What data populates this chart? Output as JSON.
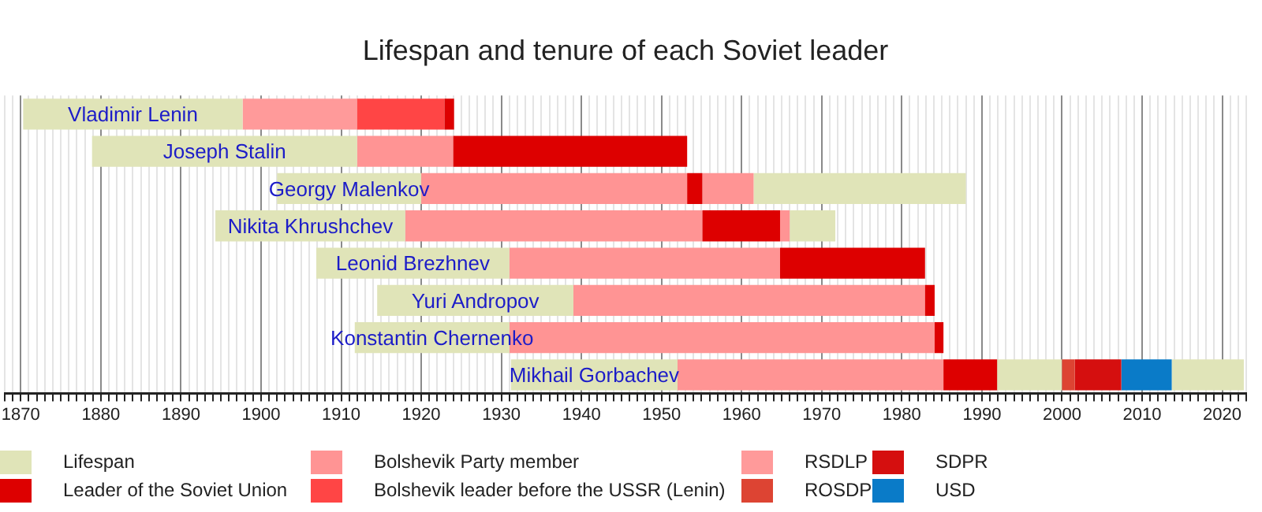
{
  "chart_data": {
    "type": "bar",
    "orientation": "horizontal",
    "title": "Lifespan and tenure of each Soviet leader",
    "categories": [
      "Vladimir Lenin",
      "Joseph Stalin",
      "Georgy Malenkov",
      "Nikita Khrushchev",
      "Leonid Brezhnev",
      "Yuri Andropov",
      "Konstantin Chernenko",
      "Mikhail Gorbachev"
    ],
    "series": [
      {
        "name": "Lifespan",
        "color": "#e0e4b8",
        "base": [
          1870.3,
          1878.9,
          1902,
          1894.3,
          1906.9,
          1914.5,
          1911.7,
          1931.2
        ],
        "values": [
          27.4,
          33.1,
          18,
          23.7,
          24.1,
          24.5,
          19.3,
          20.8
        ]
      },
      {
        "name": "Leader of the Soviet Union",
        "color": "#dd0000",
        "base": [
          1922.9,
          1924,
          1953.2,
          1955.1,
          1964.8,
          1982.9,
          1984.1,
          1985.2
        ],
        "values": [
          1.2,
          29.2,
          1.9,
          9.7,
          18.1,
          1.2,
          1.1,
          6.7
        ]
      },
      {
        "name": "Bolshevik Party member",
        "color": "#ff9494",
        "base": [
          null,
          1912,
          1920,
          1918,
          1931,
          1939,
          1931,
          1952
        ],
        "values": [
          null,
          12,
          33.2,
          37.1,
          33.8,
          43.9,
          53.1,
          33.2
        ]
      },
      {
        "name": "Bolshevik leader before the USSR (Lenin)",
        "color": "#ff4545",
        "base": [
          1912,
          null,
          null,
          null,
          null,
          null,
          null,
          null
        ],
        "values": [
          10.9,
          null,
          null,
          null,
          null,
          null,
          null,
          null
        ]
      },
      {
        "name": "RSDLP",
        "color": "#ff9a9a",
        "base": [
          1897.7,
          null,
          null,
          null,
          null,
          null,
          null,
          null
        ],
        "values": [
          14.3,
          null,
          null,
          null,
          null,
          null,
          null,
          null
        ]
      },
      {
        "name": "ROSDP",
        "color": "#dd4433",
        "base": [
          null,
          null,
          null,
          null,
          null,
          null,
          null,
          2000
        ],
        "values": [
          null,
          null,
          null,
          null,
          null,
          null,
          null,
          1.6
        ]
      },
      {
        "name": "SDPR",
        "color": "#d50f0f",
        "base": [
          null,
          null,
          null,
          null,
          null,
          null,
          null,
          2001.6
        ],
        "values": [
          null,
          null,
          null,
          null,
          null,
          null,
          null,
          5.8
        ]
      },
      {
        "name": "USD",
        "color": "#0a7bc8",
        "base": [
          null,
          null,
          null,
          null,
          null,
          null,
          null,
          2007.4
        ],
        "values": [
          null,
          null,
          null,
          null,
          null,
          null,
          null,
          6.3
        ]
      },
      {
        "color": "#ff9494",
        "base": [
          null,
          null,
          1955.1,
          1964.8,
          null,
          null,
          null,
          null
        ],
        "values": [
          null,
          null,
          6.4,
          1.2,
          null,
          null,
          null,
          null
        ]
      },
      {
        "color": "#e0e4b8",
        "base": [
          null,
          null,
          1961.5,
          1966,
          null,
          null,
          null,
          1991.9
        ],
        "values": [
          null,
          null,
          26.5,
          5.7,
          null,
          null,
          null,
          8.1
        ]
      },
      {
        "color": "#e0e4b8",
        "base": [
          null,
          null,
          null,
          null,
          null,
          null,
          null,
          2013.7
        ],
        "values": [
          null,
          null,
          null,
          null,
          null,
          null,
          null,
          9
        ]
      }
    ],
    "xlim": [
      1868,
      2023
    ],
    "xticks": [
      {
        "value": 1868,
        "label": null
      },
      {
        "value": 1869,
        "label": null
      },
      1870,
      {
        "value": 1871,
        "label": null
      },
      {
        "value": 1872,
        "label": null
      },
      {
        "value": 1873,
        "label": null
      },
      {
        "value": 1874,
        "label": null
      },
      {
        "value": 1875,
        "label": null
      },
      {
        "value": 1876,
        "label": null
      },
      {
        "value": 1877,
        "label": null
      },
      {
        "value": 1878,
        "label": null
      },
      {
        "value": 1879,
        "label": null
      },
      1880,
      {
        "value": 1881,
        "label": null
      },
      {
        "value": 1882,
        "label": null
      },
      {
        "value": 1883,
        "label": null
      },
      {
        "value": 1884,
        "label": null
      },
      {
        "value": 1885,
        "label": null
      },
      {
        "value": 1886,
        "label": null
      },
      {
        "value": 1887,
        "label": null
      },
      {
        "value": 1888,
        "label": null
      },
      {
        "value": 1889,
        "label": null
      },
      1890,
      {
        "value": 1891,
        "label": null
      },
      {
        "value": 1892,
        "label": null
      },
      {
        "value": 1893,
        "label": null
      },
      {
        "value": 1894,
        "label": null
      },
      {
        "value": 1895,
        "label": null
      },
      {
        "value": 1896,
        "label": null
      },
      {
        "value": 1897,
        "label": null
      },
      {
        "value": 1898,
        "label": null
      },
      {
        "value": 1899,
        "label": null
      },
      1900,
      {
        "value": 1901,
        "label": null
      },
      {
        "value": 1902,
        "label": null
      },
      {
        "value": 1903,
        "label": null
      },
      {
        "value": 1904,
        "label": null
      },
      {
        "value": 1905,
        "label": null
      },
      {
        "value": 1906,
        "label": null
      },
      {
        "value": 1907,
        "label": null
      },
      {
        "value": 1908,
        "label": null
      },
      {
        "value": 1909,
        "label": null
      },
      1910,
      {
        "value": 1911,
        "label": null
      },
      {
        "value": 1912,
        "label": null
      },
      {
        "value": 1913,
        "label": null
      },
      {
        "value": 1914,
        "label": null
      },
      {
        "value": 1915,
        "label": null
      },
      {
        "value": 1916,
        "label": null
      },
      {
        "value": 1917,
        "label": null
      },
      {
        "value": 1918,
        "label": null
      },
      {
        "value": 1919,
        "label": null
      },
      1920,
      {
        "value": 1921,
        "label": null
      },
      {
        "value": 1922,
        "label": null
      },
      {
        "value": 1923,
        "label": null
      },
      {
        "value": 1924,
        "label": null
      },
      {
        "value": 1925,
        "label": null
      },
      {
        "value": 1926,
        "label": null
      },
      {
        "value": 1927,
        "label": null
      },
      {
        "value": 1928,
        "label": null
      },
      {
        "value": 1929,
        "label": null
      },
      1930,
      {
        "value": 1931,
        "label": null
      },
      {
        "value": 1932,
        "label": null
      },
      {
        "value": 1933,
        "label": null
      },
      {
        "value": 1934,
        "label": null
      },
      {
        "value": 1935,
        "label": null
      },
      {
        "value": 1936,
        "label": null
      },
      {
        "value": 1937,
        "label": null
      },
      {
        "value": 1938,
        "label": null
      },
      {
        "value": 1939,
        "label": null
      },
      1940,
      {
        "value": 1941,
        "label": null
      },
      {
        "value": 1942,
        "label": null
      },
      {
        "value": 1943,
        "label": null
      },
      {
        "value": 1944,
        "label": null
      },
      {
        "value": 1945,
        "label": null
      },
      {
        "value": 1946,
        "label": null
      },
      {
        "value": 1947,
        "label": null
      },
      {
        "value": 1948,
        "label": null
      },
      {
        "value": 1949,
        "label": null
      },
      1950,
      {
        "value": 1951,
        "label": null
      },
      {
        "value": 1952,
        "label": null
      },
      {
        "value": 1953,
        "label": null
      },
      {
        "value": 1954,
        "label": null
      },
      {
        "value": 1955,
        "label": null
      },
      {
        "value": 1956,
        "label": null
      },
      {
        "value": 1957,
        "label": null
      },
      {
        "value": 1958,
        "label": null
      },
      {
        "value": 1959,
        "label": null
      },
      1960,
      {
        "value": 1961,
        "label": null
      },
      {
        "value": 1962,
        "label": null
      },
      {
        "value": 1963,
        "label": null
      },
      {
        "value": 1964,
        "label": null
      },
      {
        "value": 1965,
        "label": null
      },
      {
        "value": 1966,
        "label": null
      },
      {
        "value": 1967,
        "label": null
      },
      {
        "value": 1968,
        "label": null
      },
      {
        "value": 1969,
        "label": null
      },
      1970,
      {
        "value": 1971,
        "label": null
      },
      {
        "value": 1972,
        "label": null
      },
      {
        "value": 1973,
        "label": null
      },
      {
        "value": 1974,
        "label": null
      },
      {
        "value": 1975,
        "label": null
      },
      {
        "value": 1976,
        "label": null
      },
      {
        "value": 1977,
        "label": null
      },
      {
        "value": 1978,
        "label": null
      },
      {
        "value": 1979,
        "label": null
      },
      1980,
      {
        "value": 1981,
        "label": null
      },
      {
        "value": 1982,
        "label": null
      },
      {
        "value": 1983,
        "label": null
      },
      {
        "value": 1984,
        "label": null
      },
      {
        "value": 1985,
        "label": null
      },
      {
        "value": 1986,
        "label": null
      },
      {
        "value": 1987,
        "label": null
      },
      {
        "value": 1988,
        "label": null
      },
      {
        "value": 1989,
        "label": null
      },
      1990,
      {
        "value": 1991,
        "label": null
      },
      {
        "value": 1992,
        "label": null
      },
      {
        "value": 1993,
        "label": null
      },
      {
        "value": 1994,
        "label": null
      },
      {
        "value": 1995,
        "label": null
      },
      {
        "value": 1996,
        "label": null
      },
      {
        "value": 1997,
        "label": null
      },
      {
        "value": 1998,
        "label": null
      },
      {
        "value": 1999,
        "label": null
      },
      2000,
      {
        "value": 2001,
        "label": null
      },
      {
        "value": 2002,
        "label": null
      },
      {
        "value": 2003,
        "label": null
      },
      {
        "value": 2004,
        "label": null
      },
      {
        "value": 2005,
        "label": null
      },
      {
        "value": 2006,
        "label": null
      },
      {
        "value": 2007,
        "label": null
      },
      {
        "value": 2008,
        "label": null
      },
      {
        "value": 2009,
        "label": null
      },
      2010,
      {
        "value": 2011,
        "label": null
      },
      {
        "value": 2012,
        "label": null
      },
      {
        "value": 2013,
        "label": null
      },
      {
        "value": 2014,
        "label": null
      },
      {
        "value": 2015,
        "label": null
      },
      {
        "value": 2016,
        "label": null
      },
      {
        "value": 2017,
        "label": null
      },
      {
        "value": 2018,
        "label": null
      },
      {
        "value": 2019,
        "label": null
      },
      2020,
      {
        "value": 2021,
        "label": null
      },
      {
        "value": 2022,
        "label": null
      },
      {
        "value": 2023,
        "label": null
      }
    ],
    "grid": "x",
    "legend": "bottom"
  }
}
